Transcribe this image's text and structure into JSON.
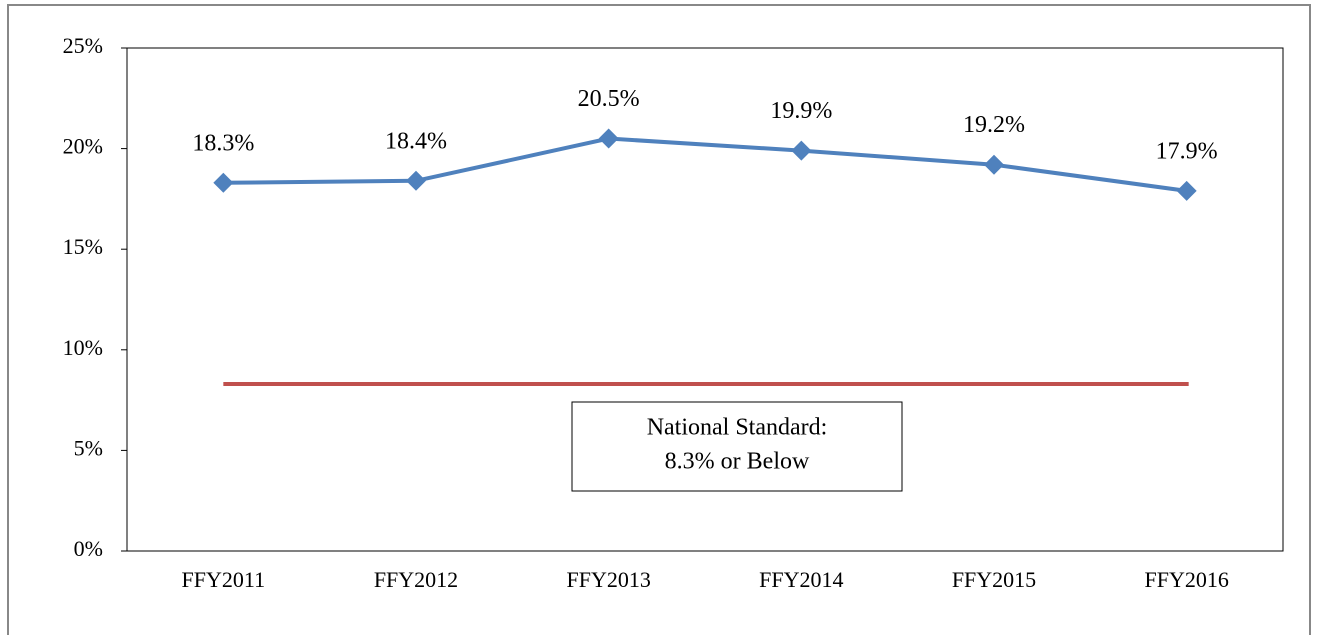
{
  "chart_data": {
    "type": "line",
    "categories": [
      "FFY2011",
      "FFY2012",
      "FFY2013",
      "FFY2014",
      "FFY2015",
      "FFY2016"
    ],
    "series": [
      {
        "color": "#4f81bd",
        "values": [
          18.3,
          18.4,
          20.5,
          19.9,
          19.2,
          17.9
        ],
        "value_labels": [
          "18.3%",
          "18.4%",
          "20.5%",
          "19.9%",
          "19.2%",
          "17.9%"
        ]
      }
    ],
    "ylim": [
      0,
      25
    ],
    "yticks": [
      {
        "value": 0,
        "label": "0%"
      },
      {
        "value": 5,
        "label": "5%"
      },
      {
        "value": 10,
        "label": "10%"
      },
      {
        "value": 15,
        "label": "15%"
      },
      {
        "value": 20,
        "label": "20%"
      },
      {
        "value": 25,
        "label": "25%"
      }
    ],
    "reference_line": {
      "value": 8.3,
      "color": "#c0504d"
    },
    "annotation": [
      "National Standard:",
      "8.3% or Below"
    ]
  }
}
